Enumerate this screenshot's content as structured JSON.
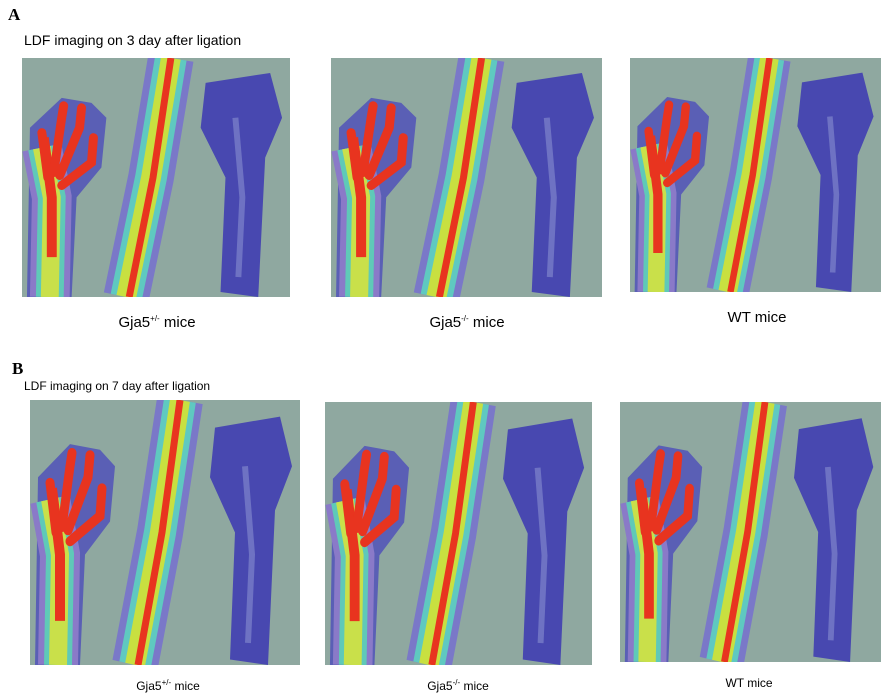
{
  "panels": [
    {
      "letter": "A",
      "caption": "LDF imaging on 3 day after ligation",
      "labels": [
        {
          "base": "Gja5",
          "sup": "+/-",
          "rest": " mice"
        },
        {
          "base": "Gja5",
          "sup": "-/-",
          "rest": " mice"
        },
        {
          "text": "WT mice"
        }
      ]
    },
    {
      "letter": "B",
      "caption": "LDF imaging on 7 day after ligation",
      "labels": [
        {
          "base": "Gja5",
          "sup": "+/-",
          "rest": " mice"
        },
        {
          "base": "Gja5",
          "sup": "-/-",
          "rest": " mice"
        },
        {
          "text": "WT mice"
        }
      ]
    }
  ]
}
